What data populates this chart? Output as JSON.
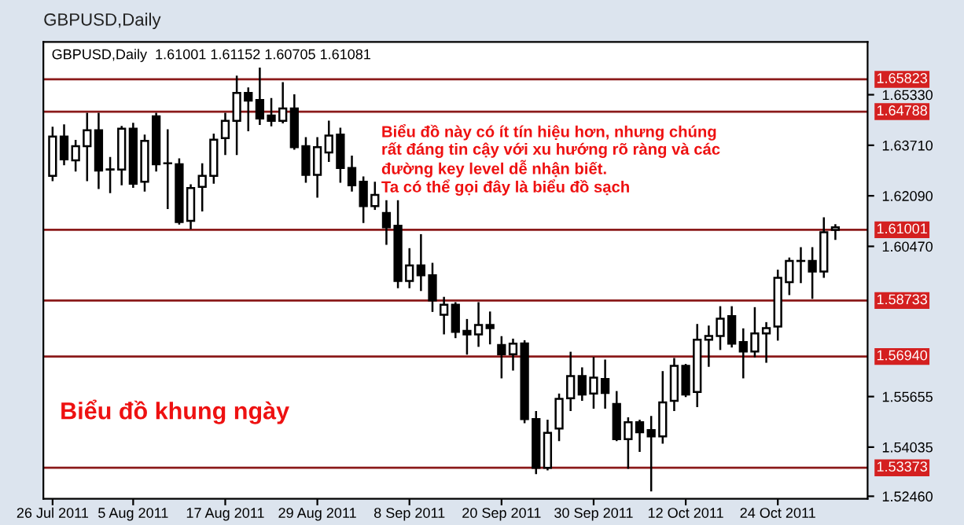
{
  "chart_data": {
    "type": "candlestick",
    "title": "GBPUSD,Daily",
    "categories": [
      "26 Jul 2011",
      null,
      null,
      null,
      null,
      null,
      null,
      "5 Aug 2011",
      null,
      null,
      null,
      null,
      null,
      null,
      null,
      "17 Aug 2011",
      null,
      null,
      null,
      null,
      null,
      null,
      null,
      "29 Aug 2011",
      null,
      null,
      null,
      null,
      null,
      null,
      null,
      "8 Sep 2011",
      null,
      null,
      null,
      null,
      null,
      null,
      null,
      "20 Sep 2011",
      null,
      null,
      null,
      null,
      null,
      null,
      null,
      "30 Sep 2011",
      null,
      null,
      null,
      null,
      null,
      null,
      null,
      "12 Oct 2011",
      null,
      null,
      null,
      null,
      null,
      null,
      null,
      "24 Oct 2011",
      null,
      null,
      null,
      null,
      null
    ],
    "ohlc": [
      [
        1.6273,
        1.6427,
        1.6259,
        1.6399
      ],
      [
        1.6399,
        1.6435,
        1.631,
        1.6326
      ],
      [
        1.6323,
        1.6385,
        1.629,
        1.6368
      ],
      [
        1.6368,
        1.6472,
        1.6259,
        1.6419
      ],
      [
        1.6419,
        1.6472,
        1.6234,
        1.629
      ],
      [
        1.6293,
        1.633,
        1.6221,
        1.6293
      ],
      [
        1.6293,
        1.643,
        1.6246,
        1.6424
      ],
      [
        1.6424,
        1.644,
        1.6238,
        1.6248
      ],
      [
        1.6254,
        1.6402,
        1.6226,
        1.6385
      ],
      [
        1.6464,
        1.6472,
        1.629,
        1.631
      ],
      [
        1.6313,
        1.6419,
        1.617,
        1.6313
      ],
      [
        1.631,
        1.6326,
        1.612,
        1.6125
      ],
      [
        1.6129,
        1.6243,
        1.6105,
        1.6234
      ],
      [
        1.6238,
        1.631,
        1.6162,
        1.6273
      ],
      [
        1.6273,
        1.6405,
        1.6251,
        1.6389
      ],
      [
        1.6394,
        1.6472,
        1.6343,
        1.6449
      ],
      [
        1.6449,
        1.6591,
        1.6343,
        1.6539
      ],
      [
        1.6539,
        1.6553,
        1.6419,
        1.6514
      ],
      [
        1.6516,
        1.6617,
        1.6439,
        1.6457
      ],
      [
        1.6466,
        1.6519,
        1.6435,
        1.6449
      ],
      [
        1.6449,
        1.657,
        1.6444,
        1.6489
      ],
      [
        1.6489,
        1.6531,
        1.636,
        1.6365
      ],
      [
        1.6368,
        1.6394,
        1.6254,
        1.6276
      ],
      [
        1.6276,
        1.6394,
        1.6206,
        1.6365
      ],
      [
        1.6348,
        1.6447,
        1.6321,
        1.6402
      ],
      [
        1.6405,
        1.6424,
        1.6254,
        1.6298
      ],
      [
        1.6298,
        1.6335,
        1.6226,
        1.6243
      ],
      [
        1.6254,
        1.6268,
        1.6125,
        1.6176
      ],
      [
        1.6176,
        1.6251,
        1.6167,
        1.6212
      ],
      [
        1.6154,
        1.6192,
        1.6055,
        1.6108
      ],
      [
        1.6113,
        1.6192,
        1.5916,
        1.5936
      ],
      [
        1.5936,
        1.6038,
        1.5916,
        1.5986
      ],
      [
        1.5986,
        1.6083,
        1.5907,
        1.5954
      ],
      [
        1.5954,
        1.5991,
        1.584,
        1.5874
      ],
      [
        1.5828,
        1.5882,
        1.5768,
        1.586
      ],
      [
        1.586,
        1.5865,
        1.5756,
        1.5773
      ],
      [
        1.5776,
        1.5811,
        1.5703,
        1.5765
      ],
      [
        1.5765,
        1.5865,
        1.5728,
        1.5795
      ],
      [
        1.5795,
        1.5835,
        1.5736,
        1.5785
      ],
      [
        1.5731,
        1.5756,
        1.5627,
        1.5701
      ],
      [
        1.5701,
        1.5748,
        1.5652,
        1.5735
      ],
      [
        1.5736,
        1.5743,
        1.5483,
        1.5493
      ],
      [
        1.5493,
        1.5516,
        1.532,
        1.5337
      ],
      [
        1.5337,
        1.5488,
        1.5332,
        1.5449
      ],
      [
        1.5463,
        1.5572,
        1.5426,
        1.5558
      ],
      [
        1.556,
        1.5706,
        1.5522,
        1.5631
      ],
      [
        1.5631,
        1.5656,
        1.5555,
        1.5572
      ],
      [
        1.5575,
        1.5689,
        1.553,
        1.5626
      ],
      [
        1.5622,
        1.5681,
        1.553,
        1.5577
      ],
      [
        1.5542,
        1.558,
        1.5426,
        1.5429
      ],
      [
        1.5429,
        1.5496,
        1.5337,
        1.5483
      ],
      [
        1.5483,
        1.5488,
        1.5391,
        1.5451
      ],
      [
        1.5458,
        1.55,
        1.5265,
        1.5438
      ],
      [
        1.5438,
        1.5644,
        1.5418,
        1.5547
      ],
      [
        1.5552,
        1.5686,
        1.5522,
        1.5664
      ],
      [
        1.5664,
        1.5667,
        1.5567,
        1.5572
      ],
      [
        1.558,
        1.5795,
        1.5535,
        1.5748
      ],
      [
        1.5748,
        1.579,
        1.5664,
        1.576
      ],
      [
        1.576,
        1.5852,
        1.5718,
        1.5815
      ],
      [
        1.5823,
        1.5852,
        1.5726,
        1.5735
      ],
      [
        1.574,
        1.5781,
        1.5627,
        1.571
      ],
      [
        1.571,
        1.5849,
        1.5694,
        1.5768
      ],
      [
        1.5768,
        1.5801,
        1.5677,
        1.5785
      ],
      [
        1.579,
        1.5969,
        1.5748,
        1.5946
      ],
      [
        1.5932,
        1.6008,
        1.5894,
        1.6
      ],
      [
        1.6,
        1.6041,
        1.5932,
        1.6
      ],
      [
        1.6,
        1.6041,
        1.5882,
        1.5966
      ],
      [
        1.5966,
        1.6137,
        1.5949,
        1.6092
      ],
      [
        1.61,
        1.6115,
        1.6071,
        1.6108
      ]
    ],
    "ylim": [
      1.5238,
      1.6702
    ],
    "yticks": [
      {
        "value": 1.6533,
        "label": "1.65330"
      },
      {
        "value": 1.6371,
        "label": "1.63710"
      },
      {
        "value": 1.6209,
        "label": "1.62090"
      },
      {
        "value": 1.6047,
        "label": "1.60470"
      },
      {
        "value": 1.55655,
        "label": "1.55655"
      },
      {
        "value": 1.54035,
        "label": "1.54035"
      },
      {
        "value": 1.5246,
        "label": "1.52460"
      }
    ],
    "ref_lines": [
      {
        "axis": "y",
        "value": 1.65823,
        "label": "1.65823",
        "color": "#8b1a1a"
      },
      {
        "axis": "y",
        "value": 1.64788,
        "label": "1.64788",
        "color": "#8b1a1a"
      },
      {
        "axis": "y",
        "value": 1.61001,
        "label": "1.61001",
        "color": "#8b1a1a"
      },
      {
        "axis": "y",
        "value": 1.58733,
        "label": "1.58733",
        "color": "#8b1a1a"
      },
      {
        "axis": "y",
        "value": 1.5694,
        "label": "1.56940",
        "color": "#8b1a1a"
      },
      {
        "axis": "y",
        "value": 1.53373,
        "label": "1.53373",
        "color": "#8b1a1a"
      }
    ],
    "annotations": [
      "GBPUSD,Daily  1.61001 1.61152 1.60705 1.61081",
      "Biểu đồ này có ít tín hiệu hơn, nhưng chúng\nrất đáng tin cậy với xu hướng rõ ràng và các\nđường key level dễ nhận biết.\nTa có thể gọi đây là biểu đồ sạch",
      "Biểu đồ khung ngày"
    ],
    "grid": false,
    "legend": false
  }
}
